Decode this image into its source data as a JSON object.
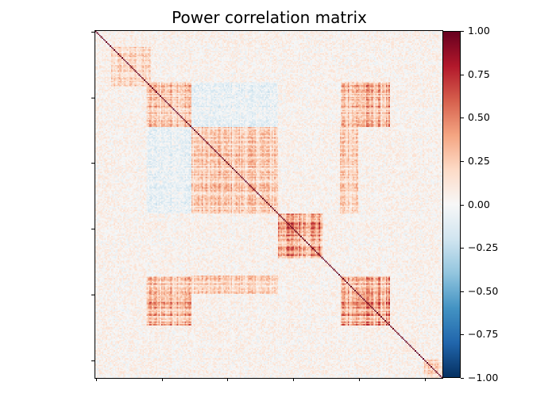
{
  "chart_data": {
    "type": "heatmap",
    "title": "Power correlation matrix",
    "n_regions": 264,
    "colormap": "RdBu_r",
    "vmin": -1,
    "vmax": 1,
    "axis_ticks": [
      0,
      50,
      100,
      150,
      200,
      250
    ],
    "axis_tick_labels_shown": false,
    "diagonal_value": 1.0,
    "colorbar": {
      "position": "right",
      "ticks": [
        1.0,
        0.75,
        0.5,
        0.25,
        0.0,
        -0.25,
        -0.5,
        -0.75,
        -1.0
      ],
      "tick_labels": [
        "1.00",
        "0.75",
        "0.50",
        "0.25",
        "0.00",
        "−0.25",
        "−0.50",
        "−0.75",
        "−1.00"
      ]
    },
    "approximate_blocks": [
      {
        "rows": [
          12,
          42
        ],
        "cols": [
          12,
          42
        ],
        "mean_r": 0.2
      },
      {
        "rows": [
          39,
          73
        ],
        "cols": [
          39,
          73
        ],
        "mean_r": 0.3
      },
      {
        "rows": [
          73,
          139
        ],
        "cols": [
          73,
          139
        ],
        "mean_r": 0.25
      },
      {
        "rows": [
          139,
          173
        ],
        "cols": [
          139,
          173
        ],
        "mean_r": 0.45
      },
      {
        "rows": [
          187,
          224
        ],
        "cols": [
          187,
          224
        ],
        "mean_r": 0.4
      },
      {
        "rows": [
          39,
          73
        ],
        "cols": [
          187,
          224
        ],
        "mean_r": 0.35
      },
      {
        "rows": [
          187,
          224
        ],
        "cols": [
          39,
          73
        ],
        "mean_r": 0.35
      },
      {
        "rows": [
          73,
          139
        ],
        "cols": [
          186,
          200
        ],
        "mean_r": 0.25
      },
      {
        "rows": [
          186,
          200
        ],
        "cols": [
          73,
          139
        ],
        "mean_r": 0.25
      },
      {
        "rows": [
          39,
          73
        ],
        "cols": [
          73,
          139
        ],
        "mean_r": -0.08
      },
      {
        "rows": [
          73,
          139
        ],
        "cols": [
          39,
          73
        ],
        "mean_r": -0.08
      },
      {
        "rows": [
          250,
          264
        ],
        "cols": [
          250,
          264
        ],
        "mean_r": 0.2
      }
    ],
    "background_mean_r": 0.04
  }
}
